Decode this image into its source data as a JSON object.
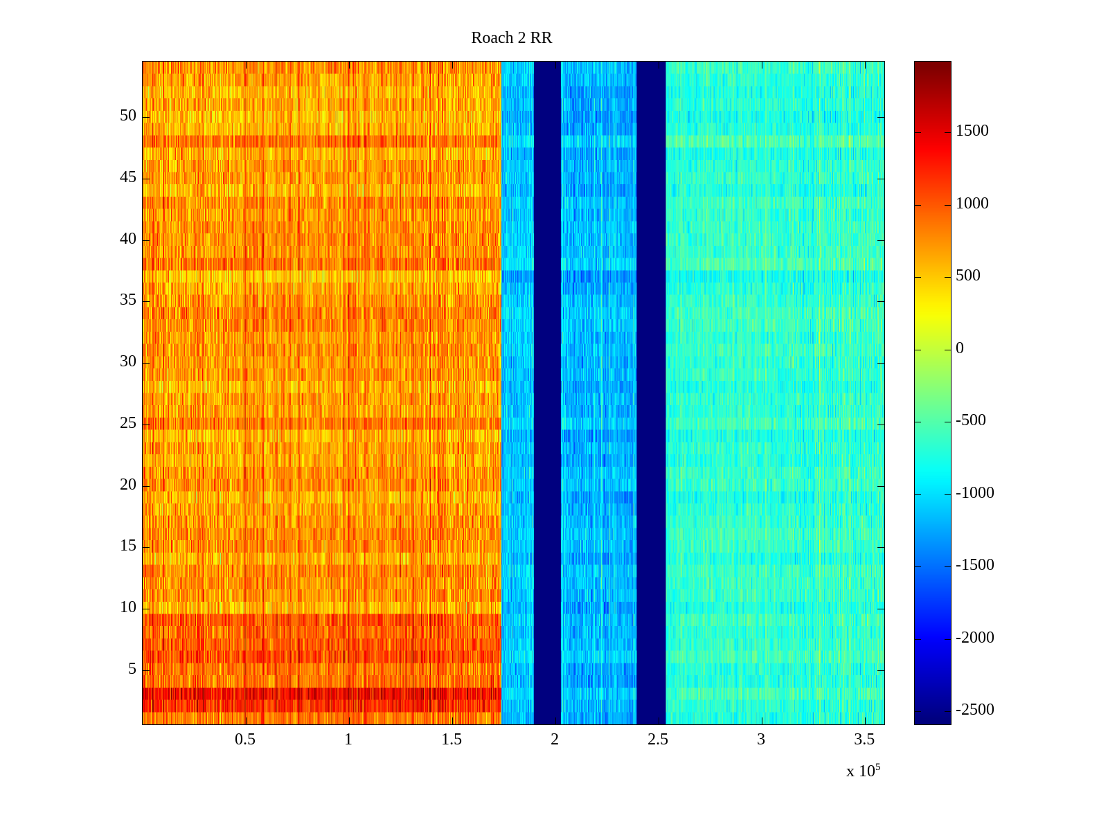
{
  "chart_data": {
    "type": "heatmap",
    "title": "Roach 2 RR",
    "xlabel": "",
    "ylabel": "",
    "x_multiplier_label": "x 10",
    "x_multiplier_exponent": "5",
    "xlim": [
      0,
      360000
    ],
    "ylim": [
      0.5,
      54.5
    ],
    "rows": 54,
    "clim": [
      -2600,
      1990
    ],
    "colormap": "jet",
    "x_ticks": [
      {
        "value": 0.5,
        "label": "0.5"
      },
      {
        "value": 1,
        "label": "1"
      },
      {
        "value": 1.5,
        "label": "1.5"
      },
      {
        "value": 2,
        "label": "2"
      },
      {
        "value": 2.5,
        "label": "2.5"
      },
      {
        "value": 3,
        "label": "3"
      },
      {
        "value": 3.5,
        "label": "3.5"
      }
    ],
    "y_ticks": [
      {
        "value": 5,
        "label": "5"
      },
      {
        "value": 10,
        "label": "10"
      },
      {
        "value": 15,
        "label": "15"
      },
      {
        "value": 20,
        "label": "20"
      },
      {
        "value": 25,
        "label": "25"
      },
      {
        "value": 30,
        "label": "30"
      },
      {
        "value": 35,
        "label": "35"
      },
      {
        "value": 40,
        "label": "40"
      },
      {
        "value": 45,
        "label": "45"
      },
      {
        "value": 50,
        "label": "50"
      }
    ],
    "colorbar_ticks": [
      {
        "value": 1500,
        "label": "1500"
      },
      {
        "value": 1000,
        "label": "1000"
      },
      {
        "value": 500,
        "label": "500"
      },
      {
        "value": 0,
        "label": "0"
      },
      {
        "value": -500,
        "label": "-500"
      },
      {
        "value": -1000,
        "label": "-1000"
      },
      {
        "value": -1500,
        "label": "-1500"
      },
      {
        "value": -2000,
        "label": "-2000"
      },
      {
        "value": -2500,
        "label": "-2500"
      }
    ],
    "regions": [
      {
        "x_start": 0,
        "x_end": 174000,
        "mean": 700,
        "spread": 500,
        "note": "high, dark-red streaks"
      },
      {
        "x_start": 174000,
        "x_end": 190000,
        "mean": -1100,
        "spread": 350
      },
      {
        "x_start": 190000,
        "x_end": 203000,
        "mean": -2600,
        "spread": 0
      },
      {
        "x_start": 203000,
        "x_end": 240000,
        "mean": -1200,
        "spread": 400
      },
      {
        "x_start": 240000,
        "x_end": 254000,
        "mean": -2600,
        "spread": 0
      },
      {
        "x_start": 254000,
        "x_end": 360000,
        "mean": -650,
        "spread": 350
      }
    ],
    "grid": false,
    "legend": "colorbar-right"
  }
}
